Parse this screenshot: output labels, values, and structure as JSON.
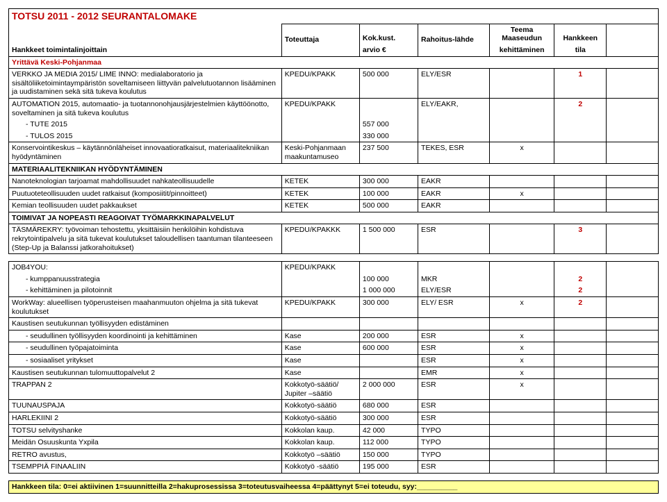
{
  "title": "TOTSU 2011 - 2012 SEURANTALOMAKE",
  "headers": {
    "col0a": "Hankkeet toimintalinjoittain",
    "col1": "Toteuttaja",
    "col2a": "Kok.kust.",
    "col2b": "arvio €",
    "col3": "Rahoitus-lähde",
    "col4a": "Teema",
    "col4b": "Maaseudun",
    "col4c": "kehittäminen",
    "col5a": "Hankkeen",
    "col5b": "tila"
  },
  "section1": "Yrittävä Keski-Pohjanmaa",
  "rows1": [
    {
      "c0": "VERKKO JA MEDIA 2015/ LIME INNO: medialaboratorio ja sisältöliiketoimintaympäristön soveltamiseen liittyvän palvelutuotannon lisääminen ja uudistaminen sekä sitä tukeva koulutus",
      "c1": "KPEDU/KPAKK",
      "c2": "500 000",
      "c3": "ELY/ESR",
      "c4": "",
      "c5": "1",
      "c6": ""
    },
    {
      "c0": "AUTOMATION 2015, automaatio- ja tuotannonohjausjärjestelmien käyttöönotto, soveltaminen ja sitä tukeva koulutus",
      "c1": "KPEDU/KPAKK",
      "c2": "",
      "c3": "ELY/EAKR,",
      "c4": "",
      "c5": "2",
      "c6": ""
    },
    {
      "c0": "  -   TUTE 2015",
      "c1": "",
      "c2": "557 000",
      "c3": "",
      "c4": "",
      "c5": "",
      "c6": ""
    },
    {
      "c0": "  -   TULOS 2015",
      "c1": "",
      "c2": "330 000",
      "c3": "",
      "c4": "",
      "c5": "",
      "c6": ""
    },
    {
      "c0": "Konservointikeskus – käytännönläheiset innovaatioratkaisut, materiaalitekniikan hyödyntäminen",
      "c1": "Keski-Pohjanmaan maakuntamuseo",
      "c2": "237 500",
      "c3": "TEKES, ESR",
      "c4": "x",
      "c5": "",
      "c6": ""
    }
  ],
  "sub1": "MATERIAALITEKNIIKAN HYÖDYNTÄMINEN",
  "rows1b": [
    {
      "c0": "Nanoteknologian tarjoamat mahdollisuudet nahkateollisuudelle",
      "c1": "KETEK",
      "c2": "300 000",
      "c3": "EAKR",
      "c4": "",
      "c5": "",
      "c6": ""
    },
    {
      "c0": "Puutuoteteollisuuden uudet ratkaisut (komposiitit/pinnoitteet)",
      "c1": "KETEK",
      "c2": "100 000",
      "c3": "EAKR",
      "c4": "x",
      "c5": "",
      "c6": ""
    },
    {
      "c0": "Kemian teollisuuden uudet pakkaukset",
      "c1": "KETEK",
      "c2": "500 000",
      "c3": "EAKR",
      "c4": "",
      "c5": "",
      "c6": ""
    }
  ],
  "sub2": "TOIMIVAT JA NOPEASTI REAGOIVAT TYÖMARKKINAPALVELUT",
  "rows1c": [
    {
      "c0": "TÄSMÄREKRY: työvoiman tehostettu, yksittäisiin henkilöihin kohdistuva rekrytointipalvelu ja sitä tukevat koulutukset taloudellisen taantuman tilanteeseen (Step-Up ja Balanssi jatkorahoitukset)",
      "c1": "KPEDU/KPAKKK",
      "c2": "1 500 000",
      "c3": "ESR",
      "c4": "",
      "c5": "3",
      "c6": ""
    }
  ],
  "rows2": [
    {
      "c0": "JOB4YOU:",
      "c1": "KPEDU/KPAKK",
      "c2": "",
      "c3": "",
      "c4": "",
      "c5": "",
      "c6": ""
    },
    {
      "c0": "  -   kumppanuusstrategia",
      "c1": "",
      "c2": "100 000",
      "c3": "MKR",
      "c4": "",
      "c5": "2",
      "c6": ""
    },
    {
      "c0": "  -   kehittäminen ja pilotoinnit",
      "c1": "",
      "c2": "1 000 000",
      "c3": "ELY/ESR",
      "c4": "",
      "c5": "2",
      "c6": ""
    },
    {
      "c0": "WorkWay: alueellisen työperusteisen maahanmuuton ohjelma ja sitä tukevat koulutukset",
      "c1": "KPEDU/KPAKK",
      "c2": "300 000",
      "c3": "ELY/ ESR",
      "c4": "x",
      "c5": "2",
      "c6": ""
    },
    {
      "c0": "Kaustisen seutukunnan työllisyyden edistäminen",
      "c1": "",
      "c2": "",
      "c3": "",
      "c4": "",
      "c5": "",
      "c6": ""
    },
    {
      "c0": "  -   seudullinen työllisyyden koordinointi ja kehittäminen",
      "c1": "Kase",
      "c2": "200 000",
      "c3": "ESR",
      "c4": "x",
      "c5": "",
      "c6": ""
    },
    {
      "c0": "  -   seudullinen työpajatoiminta",
      "c1": "Kase",
      "c2": "600 000",
      "c3": "ESR",
      "c4": "x",
      "c5": "",
      "c6": ""
    },
    {
      "c0": "  -   sosiaaliset yritykset",
      "c1": "Kase",
      "c2": "",
      "c3": "ESR",
      "c4": "x",
      "c5": "",
      "c6": ""
    },
    {
      "c0": "Kaustisen seutukunnan tulomuuttopalvelut 2",
      "c1": "Kase",
      "c2": "",
      "c3": "EMR",
      "c4": "x",
      "c5": "",
      "c6": ""
    },
    {
      "c0": "TRAPPAN 2",
      "c1": "Kokkotyö-säätiö/ Jupiter –säätiö",
      "c2": "2 000 000",
      "c3": "ESR",
      "c4": "x",
      "c5": "",
      "c6": ""
    },
    {
      "c0": "TUUNAUSPAJA",
      "c1": "Kokkotyö-säätiö",
      "c2": "680 000",
      "c3": "ESR",
      "c4": "",
      "c5": "",
      "c6": ""
    },
    {
      "c0": "HARLEKIINI 2",
      "c1": "Kokkotyö-säätiö",
      "c2": "300 000",
      "c3": "ESR",
      "c4": "",
      "c5": "",
      "c6": ""
    },
    {
      "c0": "TOTSU selvityshanke",
      "c1": "Kokkolan kaup.",
      "c2": "42 000",
      "c3": "TYPO",
      "c4": "",
      "c5": "",
      "c6": ""
    },
    {
      "c0": "Meidän Osuuskunta Yxpila",
      "c1": "Kokkolan kaup.",
      "c2": "112 000",
      "c3": "TYPO",
      "c4": "",
      "c5": "",
      "c6": ""
    },
    {
      "c0": "RETRO avustus,",
      "c1": "Kokkotyö –säätiö",
      "c2": "150 000",
      "c3": "TYPO",
      "c4": "",
      "c5": "",
      "c6": ""
    },
    {
      "c0": "TSEMPPIÄ FINAALIIN",
      "c1": "Kokkotyö -säätiö",
      "c2": "195 000",
      "c3": "ESR",
      "c4": "",
      "c5": "",
      "c6": ""
    }
  ],
  "legend": "Hankkeen tila: 0=ei aktiivinen 1=suunnitteilla 2=hakuprosessissa 3=toteutusvaiheessa 4=päättynyt 5=ei toteudu, syy:__________"
}
